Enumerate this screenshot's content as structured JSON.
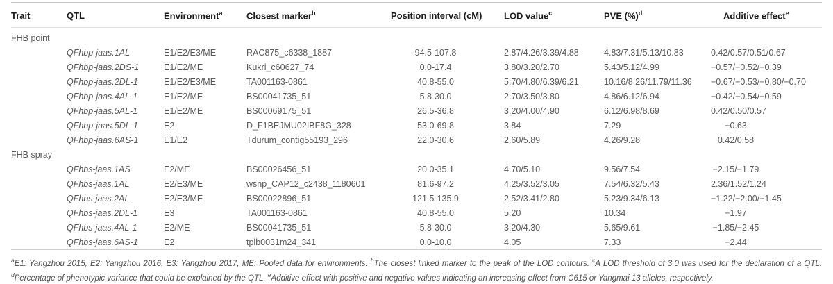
{
  "table": {
    "columns": [
      {
        "label": "Trait",
        "sup": ""
      },
      {
        "label": "QTL",
        "sup": ""
      },
      {
        "label": "Environment",
        "sup": "a"
      },
      {
        "label": "Closest marker",
        "sup": "b"
      },
      {
        "label": "Position interval (cM)",
        "sup": ""
      },
      {
        "label": "LOD value",
        "sup": "c"
      },
      {
        "label": "PVE (%)",
        "sup": "d"
      },
      {
        "label": "Additive effect",
        "sup": "e"
      }
    ],
    "groups": [
      {
        "trait": "FHB point",
        "rows": [
          [
            "QFhbp-jaas.1AL",
            "E1/E2/E3/ME",
            "RAC875_c6338_1887",
            "94.5-107.8",
            "2.87/4.26/3.39/4.88",
            "4.83/7.31/5.13/10.83",
            "0.42/0.57/0.51/0.67"
          ],
          [
            "QFhbp-jaas.2DS-1",
            "E1/E2/ME",
            "Kukri_c60627_74",
            "0.0-17.4",
            "3.80/3.20/2.70",
            "5.43/5.12/4.99",
            "−0.57/−0.52/−0.39"
          ],
          [
            "QFhbp-jaas.2DL-1",
            "E1/E2/E3/ME",
            "TA001163-0861",
            "40.8-55.0",
            "5.70/4.80/6.39/6.21",
            "10.16/8.26/11.79/11.36",
            "−0.67/−0.53/−0.80/−0.70"
          ],
          [
            "QFhbp-jaas.4AL-1",
            "E1/E2/ME",
            "BS00041735_51",
            "5.8-30.0",
            "2.70/3.50/3.80",
            "4.86/6.12/6.94",
            "−0.42/−0.54/−0.59"
          ],
          [
            "QFhbp-jaas.5AL-1",
            "E1/E2/ME",
            "BS00069175_51",
            "26.5-36.8",
            "3.20/4.00/4.90",
            "6.12/6.98/8.69",
            "0.42/0.50/0.57"
          ],
          [
            "QFhbp-jaas.5DL-1",
            "E2",
            "D_F1BEJMU02IBF8G_328",
            "53.0-69.8",
            "3.84",
            "7.29",
            "−0.63"
          ],
          [
            "QFhbp-jaas.6AS-1",
            "E1/E2",
            "Tdurum_contig55193_296",
            "22.0-30.6",
            "2.60/5.89",
            "4.26/9.28",
            "0.42/0.58"
          ]
        ]
      },
      {
        "trait": "FHB spray",
        "rows": [
          [
            "QFhbs-jaas.1AS",
            "E2/ME",
            "BS00026456_51",
            "20.0-35.1",
            "4.70/5.10",
            "9.56/7.54",
            "−2.15/−1.79"
          ],
          [
            "QFhbs-jaas.1AL",
            "E2/E3/ME",
            "wsnp_CAP12_c2438_1180601",
            "81.6-97.2",
            "4.25/3.52/3.05",
            "7.54/6.32/5.43",
            "2.36/1.52/1.24"
          ],
          [
            "QFhbs-jaas.2AL",
            "E2/E3/ME",
            "BS00022896_51",
            "121.5-135.9",
            "2.52/3.41/2.80",
            "5.23/9.34/6.13",
            "−1.22/−2.00/−1.45"
          ],
          [
            "QFhbs-jaas.2DL-1",
            "E3",
            "TA001163-0861",
            "40.8-55.0",
            "5.20",
            "10.34",
            "−1.97"
          ],
          [
            "QFhbs-jaas.4AL-1",
            "E2/ME",
            "BS00041735_51",
            "5.8-30.0",
            "3.20/4.30",
            "5.65/9.61",
            "−1.85/−2.45"
          ],
          [
            "QFhbs-jaas.6AS-1",
            "E2",
            "tplb0031m24_341",
            "0.0-10.0",
            "4.05",
            "7.33",
            "−2.44"
          ]
        ]
      }
    ],
    "footnotes": [
      {
        "sup": "a",
        "text": "E1: Yangzhou 2015, E2: Yangzhou 2016, E3: Yangzhou 2017, ME: Pooled data for environments."
      },
      {
        "sup": "b",
        "text": "The closest linked marker to the peak of the LOD contours."
      },
      {
        "sup": "c",
        "text": "A LOD threshold of 3.0 was used for the declaration of a QTL."
      },
      {
        "sup": "d",
        "text": "Percentage of phenotypic variance that could be explained by the QTL."
      },
      {
        "sup": "e",
        "text": "Additive effect with positive and negative values indicating an increasing effect from C615 or Yangmai 13 alleles, respectively."
      }
    ]
  }
}
